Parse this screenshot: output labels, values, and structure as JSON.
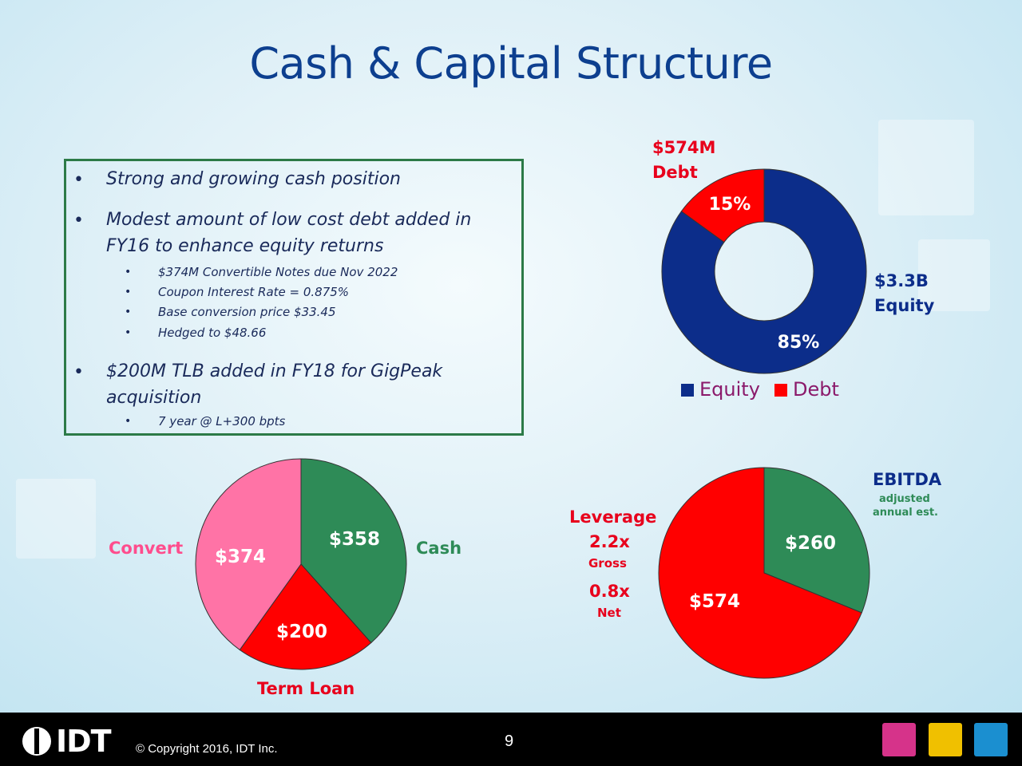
{
  "title": "Cash & Capital Structure",
  "bullets": [
    {
      "text": "Strong and growing cash position",
      "sub": []
    },
    {
      "text_lines": [
        "Modest amount of low cost debt added in",
        "FY16 to enhance equity returns"
      ],
      "sub": [
        "$374M Convertible Notes due Nov 2022",
        "Coupon Interest Rate = 0.875%",
        "Base conversion price $33.45",
        "Hedged to $48.66"
      ]
    },
    {
      "text_lines": [
        "$200M TLB added in FY18 for GigPeak",
        "acquisition"
      ],
      "sub": [
        "7 year @ L+300 bpts"
      ]
    }
  ],
  "bullet_char": "•",
  "donut": {
    "top_label_1": "$574M",
    "top_label_2": "Debt",
    "right_label_1": "$3.3B",
    "right_label_2": "Equity",
    "legend": [
      "Equity",
      "Debt"
    ]
  },
  "pie_left": {
    "label_convert": "Convert",
    "label_cash": "Cash",
    "label_termloan": "Term Loan"
  },
  "leverage": {
    "title": "Leverage",
    "gross_value": "2.2x",
    "gross_label": "Gross",
    "net_value": "0.8x",
    "net_label": "Net"
  },
  "pie_right": {
    "ebitda": "EBITDA",
    "adjusted": "adjusted",
    "annual": "annual est."
  },
  "footer": {
    "logo": "IDT",
    "copyright": "© Copyright 2016, IDT Inc.",
    "page": "9"
  },
  "colors": {
    "equity": "#0c2d8a",
    "debt": "#ff0000",
    "cash": "#2e8b57",
    "convert": "#ff73a6",
    "label_red": "#e8001c",
    "label_navy": "#0c2d8a",
    "label_green": "#2e8b57"
  },
  "chart_data": [
    {
      "type": "pie",
      "variant": "donut",
      "categories": [
        "Equity",
        "Debt"
      ],
      "values": [
        85,
        15
      ],
      "labels": [
        "85%",
        "15%"
      ],
      "legend": "bottom"
    },
    {
      "type": "pie",
      "categories": [
        "Cash",
        "Term Loan",
        "Convert"
      ],
      "values": [
        358,
        200,
        374
      ],
      "labels": [
        "$358",
        "$200",
        "$374"
      ]
    },
    {
      "type": "pie",
      "categories": [
        "EBITDA",
        "Debt"
      ],
      "values": [
        260,
        574
      ],
      "labels": [
        "$260",
        "$574"
      ]
    }
  ]
}
